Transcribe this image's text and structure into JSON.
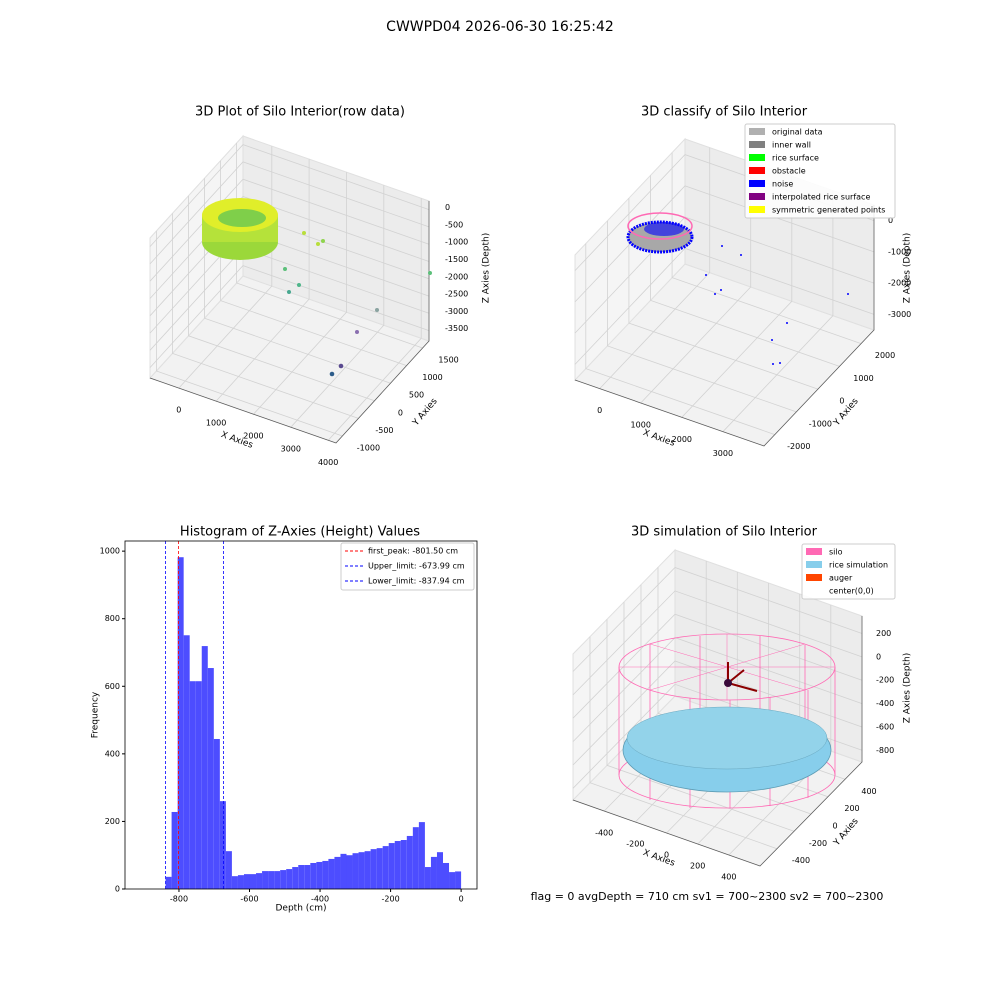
{
  "title": "CWWPD04 2026-06-30 16:25:42",
  "chart_data": [
    {
      "type": "scatter3d",
      "title": "3D Plot of Silo Interior(row data)",
      "xlabel": "X Axies",
      "ylabel": "Y Axies",
      "zlabel": "Z Axies (Depth)",
      "xlim": [
        -770,
        4210
      ],
      "ylim": [
        -1200,
        1700
      ],
      "zlim": [
        -3800,
        250
      ],
      "xticks": [
        0,
        1000,
        2000,
        3000,
        4000
      ],
      "yticks": [
        -1000,
        -500,
        0,
        500,
        1000,
        1500
      ],
      "zticks": [
        0,
        -500,
        -1000,
        -1500,
        -2000,
        -2500,
        -3000,
        -3500
      ],
      "grid": true
    },
    {
      "type": "scatter3d",
      "title": "3D classify of Silo Interior",
      "xlabel": "X Axies",
      "ylabel": "Y Axies",
      "zlabel": "Z Axies (Depth)",
      "xlim": [
        -600,
        4000
      ],
      "ylim": [
        -2500,
        2600
      ],
      "zlim": [
        -3500,
        500
      ],
      "xticks": [
        0,
        1000,
        2000,
        3000
      ],
      "yticks": [
        -2000,
        -1000,
        0,
        1000,
        2000
      ],
      "zticks": [
        0,
        -1000,
        -2000,
        -3000
      ],
      "grid": true,
      "legend": {
        "loc": "upper right",
        "entries": [
          {
            "name": "original data",
            "color": "#b0b0b0"
          },
          {
            "name": "inner wall",
            "color": "#808080"
          },
          {
            "name": "rice surface",
            "color": "#00ff00"
          },
          {
            "name": "obstacle",
            "color": "#ff0000"
          },
          {
            "name": "noise",
            "color": "#0000ff"
          },
          {
            "name": "interpolated rice surface",
            "color": "#800080"
          },
          {
            "name": "symmetric generated points",
            "color": "#ffff00"
          }
        ]
      }
    },
    {
      "type": "histogram",
      "title": "Histogram of Z-Axies (Height) Values",
      "xlabel": "Depth (cm)",
      "ylabel": "Frequency",
      "color": "#4d4dff",
      "bins": [
        -838,
        -820.9,
        -803.8,
        -786.7,
        -769.6,
        -752.5,
        -735.4,
        -718.3,
        -701.2,
        -684.1,
        -667,
        -649.9,
        -632.8,
        -615.7,
        -598.6,
        -581.5,
        -564.4,
        -547.3,
        -530.2,
        -513.1,
        -496,
        -478.9,
        -461.8,
        -444.7,
        -427.6,
        -410.5,
        -393.4,
        -376.3,
        -359.2,
        -342.1,
        -325,
        -307.9,
        -290.8,
        -273.7,
        -256.6,
        -239.5,
        -222.4,
        -205.3,
        -188.2,
        -171.1,
        -154,
        -136.9,
        -119.8,
        -102.7,
        -85.6,
        -68.5,
        -51.4,
        -34.3,
        -17.2,
        -0.1
      ],
      "values": [
        36,
        228,
        982,
        751,
        615,
        615,
        719,
        654,
        444,
        260,
        112,
        38,
        41,
        44,
        44,
        47,
        53,
        53,
        53,
        56,
        59,
        65,
        71,
        71,
        77,
        80,
        83,
        89,
        95,
        104,
        100,
        106,
        109,
        112,
        118,
        121,
        127,
        136,
        142,
        145,
        157,
        183,
        198,
        65,
        95,
        109,
        77,
        50,
        52
      ],
      "xlim": [
        -953,
        45
      ],
      "ylim": [
        0,
        1030
      ],
      "xticks": [
        -800,
        -600,
        -400,
        -200,
        0
      ],
      "yticks": [
        0,
        200,
        400,
        600,
        800,
        1000
      ],
      "lines": [
        {
          "name": "first_peak: -801.50 cm",
          "value": -801.5,
          "color": "#ff0000"
        },
        {
          "name": "Upper_limit: -673.99 cm",
          "value": -673.99,
          "color": "#0000ff"
        },
        {
          "name": "Lower_limit: -837.94 cm",
          "value": -837.94,
          "color": "#0000ff"
        }
      ],
      "legend": "upper right"
    },
    {
      "type": "surface3d",
      "title": "3D simulation of Silo Interior",
      "xlabel": "X Axies",
      "ylabel": "Y Axies",
      "zlabel": "Z Axies (Depth)",
      "xlim": [
        -600,
        600
      ],
      "ylim": [
        -600,
        600
      ],
      "zlim": [
        -900,
        350
      ],
      "xticks": [
        -400,
        -200,
        0,
        200,
        400
      ],
      "yticks": [
        -400,
        -200,
        0,
        200,
        400
      ],
      "zticks": [
        200,
        0,
        -200,
        -400,
        -600,
        -800
      ],
      "grid": true,
      "legend": {
        "loc": "upper right",
        "entries": [
          {
            "name": "silo",
            "color": "#ff69b4"
          },
          {
            "name": "rice simulation",
            "color": "#87ceeb"
          },
          {
            "name": "auger",
            "color": "#ff4500"
          },
          {
            "name": "center(0,0)",
            "color": "#ffffff"
          }
        ]
      },
      "annotation": "flag = 0     avgDepth = 710 cm  sv1 = 700~2300  sv2 = 700~2300"
    }
  ]
}
